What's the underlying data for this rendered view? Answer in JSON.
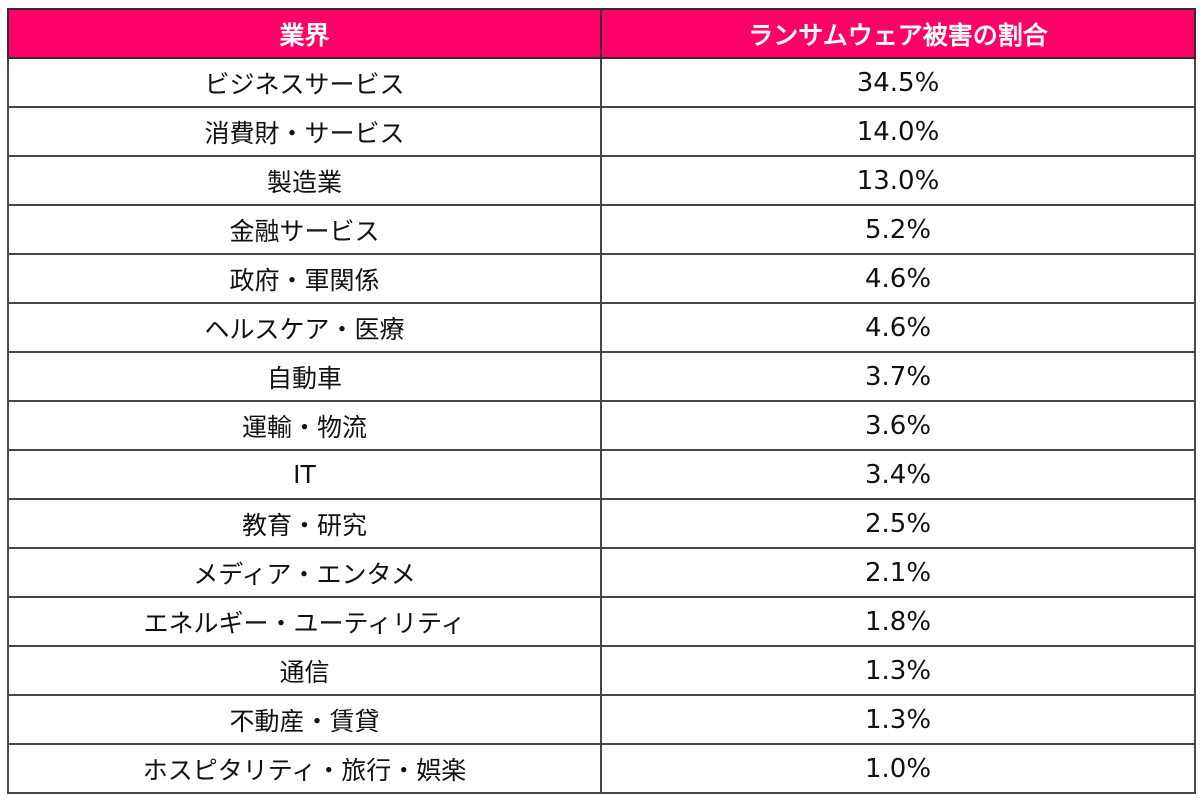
{
  "table": {
    "header_color": "#FF0066",
    "columns": [
      "業界",
      "ランサムウェア被害の割合"
    ],
    "rows": [
      {
        "industry": "ビジネスサービス",
        "share": "34.5%"
      },
      {
        "industry": "消費財・サービス",
        "share": "14.0%"
      },
      {
        "industry": "製造業",
        "share": "13.0%"
      },
      {
        "industry": "金融サービス",
        "share": "5.2%"
      },
      {
        "industry": "政府・軍関係",
        "share": "4.6%"
      },
      {
        "industry": "ヘルスケア・医療",
        "share": "4.6%"
      },
      {
        "industry": "自動車",
        "share": "3.7%"
      },
      {
        "industry": "運輸・物流",
        "share": "3.6%"
      },
      {
        "industry": "IT",
        "share": "3.4%"
      },
      {
        "industry": "教育・研究",
        "share": "2.5%"
      },
      {
        "industry": "メディア・エンタメ",
        "share": "2.1%"
      },
      {
        "industry": "エネルギー・ユーティリティ",
        "share": "1.8%"
      },
      {
        "industry": "通信",
        "share": "1.3%"
      },
      {
        "industry": "不動産・賃貸",
        "share": "1.3%"
      },
      {
        "industry": "ホスピタリティ・旅行・娯楽",
        "share": "1.0%"
      }
    ]
  }
}
